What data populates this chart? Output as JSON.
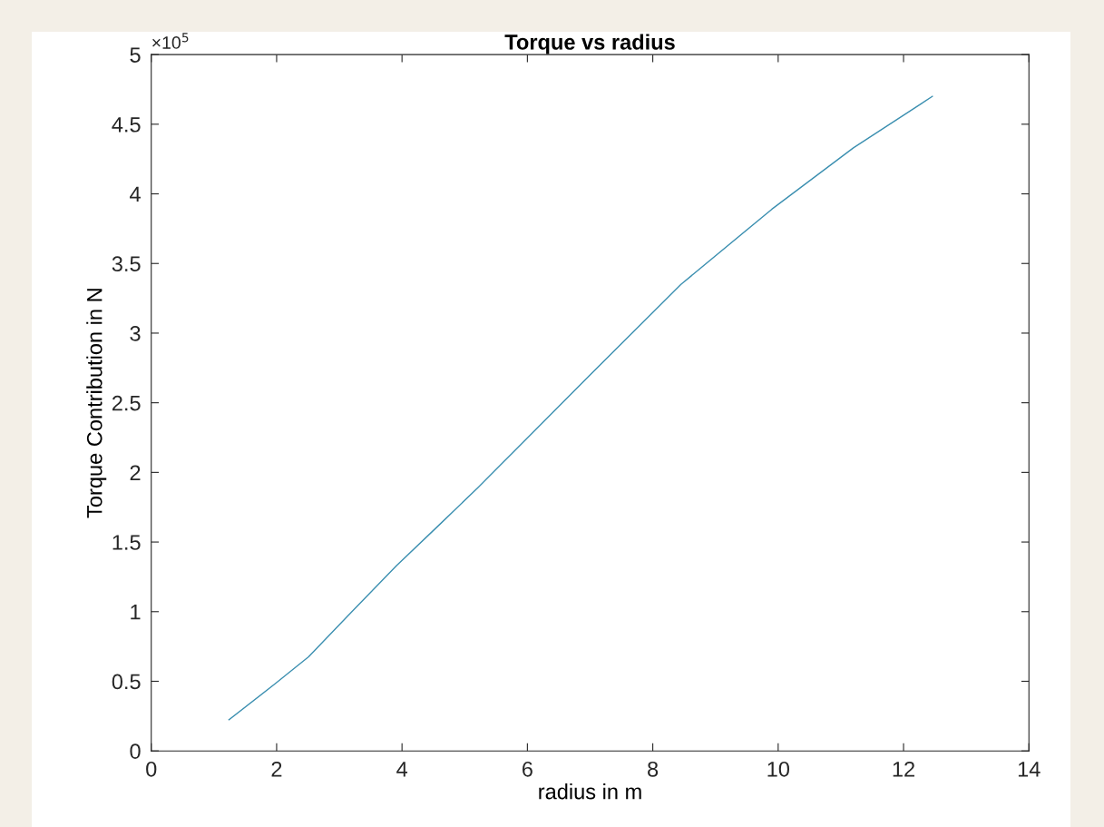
{
  "chart_data": {
    "type": "line",
    "title": "Torque vs radius",
    "xlabel": "radius in m",
    "ylabel": "Torque Contribution in N",
    "annotations": [
      "×10$^{5}$"
    ],
    "series": [
      {
        "color": "#3b8fb0",
        "x": [
          1.24,
          1.97,
          2.51,
          3.18,
          3.91,
          4.61,
          5.21,
          5.74,
          7.0,
          8.45,
          9.9,
          11.2,
          12.46
        ],
        "values": [
          0.224,
          0.48,
          0.676,
          0.99,
          1.33,
          1.63,
          1.89,
          2.13,
          2.7,
          3.35,
          3.89,
          4.33,
          4.7
        ]
      }
    ],
    "xlim": [
      0,
      14
    ],
    "xticks": [
      0,
      2,
      4,
      6,
      8,
      10,
      12,
      14
    ],
    "ylim": [
      0,
      5
    ],
    "yticks": [
      0,
      0.5,
      1,
      1.5,
      2,
      2.5,
      3,
      3.5,
      4,
      4.5,
      5
    ],
    "grid": false,
    "legend": false
  }
}
